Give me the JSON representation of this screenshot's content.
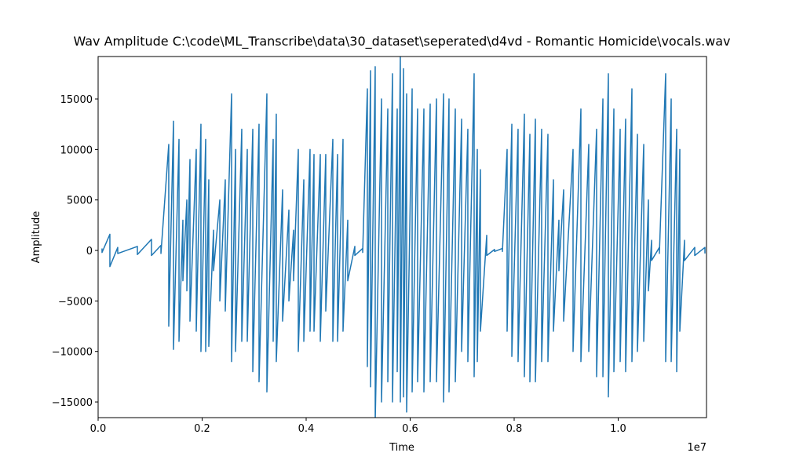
{
  "chart_data": {
    "type": "line",
    "title": "Wav Amplitude C:\\code\\ML_Transcribe\\data\\30_dataset\\seperated\\d4vd - Romantic Homicide\\vocals.wav",
    "x_label": "Time",
    "y_label": "Amplitude",
    "x_offset_label": "1e7",
    "xlim": [
      0,
      11698000
    ],
    "ylim": [
      -16550,
      19200
    ],
    "xticks": [
      {
        "value": 0,
        "label": "0.0"
      },
      {
        "value": 2000000,
        "label": "0.2"
      },
      {
        "value": 4000000,
        "label": "0.4"
      },
      {
        "value": 6000000,
        "label": "0.6"
      },
      {
        "value": 8000000,
        "label": "0.8"
      },
      {
        "value": 10000000,
        "label": "1.0"
      }
    ],
    "yticks": [
      {
        "value": -15000,
        "label": "−15000"
      },
      {
        "value": -10000,
        "label": "−10000"
      },
      {
        "value": -5000,
        "label": "−5000"
      },
      0,
      5000,
      10000,
      15000
    ],
    "grid": false,
    "x": [
      75000,
      75000,
      226000,
      226000,
      377000,
      377000,
      755000,
      755000,
      1026000,
      1026000,
      1208000,
      1208000,
      1358000,
      1358000,
      1449000,
      1449000,
      1555000,
      1555000,
      1630000,
      1630000,
      1706000,
      1706000,
      1766000,
      1766000,
      1887000,
      1887000,
      1977000,
      1977000,
      2068000,
      2068000,
      2128000,
      2128000,
      2219000,
      2219000,
      2340000,
      2340000,
      2445000,
      2445000,
      2566000,
      2566000,
      2642000,
      2642000,
      2762000,
      2762000,
      2868000,
      2868000,
      2974000,
      2974000,
      3094000,
      3094000,
      3245000,
      3245000,
      3366000,
      3366000,
      3426000,
      3426000,
      3547000,
      3547000,
      3668000,
      3668000,
      3758000,
      3758000,
      3849000,
      3849000,
      3955000,
      3955000,
      4075000,
      4075000,
      4151000,
      4151000,
      4272000,
      4272000,
      4377000,
      4377000,
      4513000,
      4513000,
      4604000,
      4604000,
      4709000,
      4709000,
      4800000,
      4800000,
      4936000,
      4936000,
      5087000,
      5087000,
      5177000,
      5177000,
      5238000,
      5238000,
      5328000,
      5328000,
      5449000,
      5449000,
      5570000,
      5570000,
      5660000,
      5660000,
      5751000,
      5751000,
      5811000,
      5811000,
      5872000,
      5872000,
      5932000,
      5932000,
      6038000,
      6038000,
      6143000,
      6143000,
      6264000,
      6264000,
      6385000,
      6385000,
      6506000,
      6506000,
      6642000,
      6642000,
      6747000,
      6747000,
      6868000,
      6868000,
      6989000,
      6989000,
      7109000,
      7109000,
      7230000,
      7230000,
      7291000,
      7291000,
      7351000,
      7351000,
      7472000,
      7472000,
      7623000,
      7623000,
      7774000,
      7774000,
      7864000,
      7864000,
      7955000,
      7955000,
      8075000,
      8075000,
      8196000,
      8196000,
      8302000,
      8302000,
      8408000,
      8408000,
      8528000,
      8528000,
      8649000,
      8649000,
      8755000,
      8755000,
      8860000,
      8860000,
      8951000,
      8951000,
      9132000,
      9132000,
      9283000,
      9283000,
      9434000,
      9434000,
      9585000,
      9585000,
      9706000,
      9706000,
      9811000,
      9811000,
      9917000,
      9917000,
      10038000,
      10038000,
      10143000,
      10143000,
      10264000,
      10264000,
      10370000,
      10370000,
      10491000,
      10491000,
      10581000,
      10581000,
      10642000,
      10642000,
      10792000,
      10792000,
      10913000,
      10913000,
      11019000,
      11019000,
      11125000,
      11125000,
      11185000,
      11185000,
      11275000,
      11275000,
      11472000,
      11472000,
      11668000,
      11668000
    ],
    "series": [
      {
        "color": "#1f77b4",
        "values": [
          200,
          -200,
          1600,
          -1600,
          300,
          -300,
          400,
          -400,
          1100,
          -500,
          500,
          -300,
          10500,
          -7500,
          12800,
          -9800,
          11000,
          -9000,
          3000,
          -3000,
          5000,
          -4000,
          9000,
          -7000,
          10000,
          -8000,
          12500,
          -10000,
          11000,
          -10000,
          7000,
          -9500,
          2000,
          -2000,
          5000,
          -5000,
          7000,
          -6000,
          15500,
          -11000,
          10000,
          -10000,
          12000,
          -9000,
          10000,
          -9000,
          12000,
          -12000,
          12500,
          -13000,
          15500,
          -14000,
          11000,
          -9000,
          13500,
          -11000,
          6000,
          -7000,
          4000,
          -5000,
          2000,
          -3000,
          10000,
          -10000,
          7000,
          -9000,
          10000,
          -8000,
          9500,
          -8000,
          9500,
          -9000,
          9500,
          -6000,
          11000,
          -9000,
          9500,
          -9000,
          11000,
          -8000,
          3000,
          -3000,
          400,
          -500,
          200,
          -200,
          16000,
          -11500,
          17800,
          -13500,
          18200,
          -17000,
          15000,
          -15000,
          14000,
          -13000,
          17500,
          -15000,
          14000,
          -12000,
          19500,
          -15000,
          18000,
          -14500,
          15500,
          -16000,
          16000,
          -14000,
          14000,
          -13000,
          14000,
          -14000,
          14500,
          -13000,
          15000,
          -13000,
          15500,
          -15000,
          15000,
          -14000,
          14000,
          -13000,
          13000,
          -10000,
          12000,
          -11000,
          17500,
          -12500,
          10000,
          -11000,
          8000,
          -8000,
          1500,
          -500,
          100,
          -100,
          200,
          -100,
          10000,
          -8000,
          12500,
          -10500,
          12000,
          -11000,
          13500,
          -12500,
          11500,
          -13000,
          13000,
          -13000,
          12000,
          -11000,
          11500,
          -11000,
          7000,
          -8000,
          3000,
          -2000,
          6000,
          -7000,
          10000,
          -10000,
          14000,
          -11000,
          10500,
          -10000,
          12000,
          -12500,
          15000,
          -12500,
          17500,
          -14500,
          14000,
          -12000,
          12000,
          -11000,
          13000,
          -12000,
          16000,
          -11000,
          11500,
          -10000,
          10500,
          -9000,
          5000,
          -4000,
          1000,
          -1000,
          300,
          -300,
          17500,
          -11000,
          15000,
          -11000,
          12000,
          -12000,
          10000,
          -8000,
          1000,
          -1000,
          300,
          -500,
          300,
          -300
        ]
      }
    ]
  }
}
